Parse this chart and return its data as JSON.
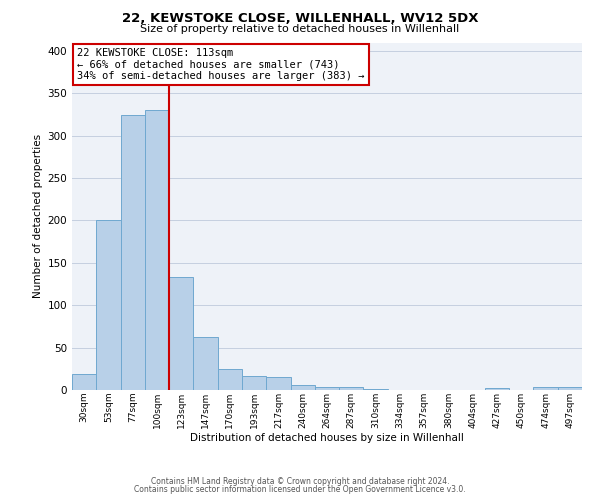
{
  "title": "22, KEWSTOKE CLOSE, WILLENHALL, WV12 5DX",
  "subtitle": "Size of property relative to detached houses in Willenhall",
  "xlabel": "Distribution of detached houses by size in Willenhall",
  "ylabel": "Number of detached properties",
  "bar_labels": [
    "30sqm",
    "53sqm",
    "77sqm",
    "100sqm",
    "123sqm",
    "147sqm",
    "170sqm",
    "193sqm",
    "217sqm",
    "240sqm",
    "264sqm",
    "287sqm",
    "310sqm",
    "334sqm",
    "357sqm",
    "380sqm",
    "404sqm",
    "427sqm",
    "450sqm",
    "474sqm",
    "497sqm"
  ],
  "bar_values": [
    19,
    200,
    325,
    330,
    133,
    62,
    25,
    16,
    15,
    6,
    4,
    3,
    1,
    0,
    0,
    0,
    0,
    2,
    0,
    4,
    4
  ],
  "bar_color": "#b8d0e8",
  "bar_edge_color": "#6fa8d0",
  "vline_x": 3.5,
  "vline_color": "#cc0000",
  "annotation_title": "22 KEWSTOKE CLOSE: 113sqm",
  "annotation_line1": "← 66% of detached houses are smaller (743)",
  "annotation_line2": "34% of semi-detached houses are larger (383) →",
  "annotation_box_color": "#ffffff",
  "annotation_box_edge": "#cc0000",
  "ylim": [
    0,
    410
  ],
  "yticks": [
    0,
    50,
    100,
    150,
    200,
    250,
    300,
    350,
    400
  ],
  "footer1": "Contains HM Land Registry data © Crown copyright and database right 2024.",
  "footer2": "Contains public sector information licensed under the Open Government Licence v3.0.",
  "bg_color": "#ffffff",
  "plot_bg_color": "#eef2f8"
}
